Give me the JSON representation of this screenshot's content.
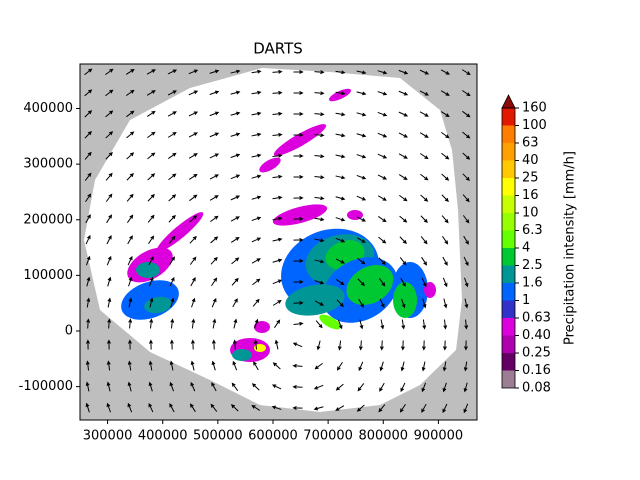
{
  "chart_data": {
    "type": "map",
    "title": "DARTS",
    "xlim": [
      250000,
      970000
    ],
    "ylim": [
      -160000,
      480000
    ],
    "xticks": [
      300000,
      400000,
      500000,
      600000,
      700000,
      800000,
      900000
    ],
    "yticks": [
      -100000,
      0,
      100000,
      200000,
      300000,
      400000
    ],
    "colorbar": {
      "label": "Precipitation intensity [mm/h]",
      "levels": [
        0.08,
        0.16,
        0.25,
        {
          "value": 0.4,
          "label": "0.40"
        },
        0.63,
        1,
        1.6,
        2.5,
        4,
        6.3,
        10,
        16,
        25,
        40,
        63,
        100,
        160
      ],
      "colors": [
        "#9c7e94",
        "#640064",
        "#af00af",
        "#dc00dc",
        "#3232c8",
        "#0064ff",
        "#009696",
        "#00c832",
        "#64ff00",
        "#96ff00",
        "#c8ff00",
        "#ffff00",
        "#ffc800",
        "#ffa000",
        "#ff7d00",
        "#e11900"
      ],
      "extend_color": "#8b0a0a"
    }
  }
}
